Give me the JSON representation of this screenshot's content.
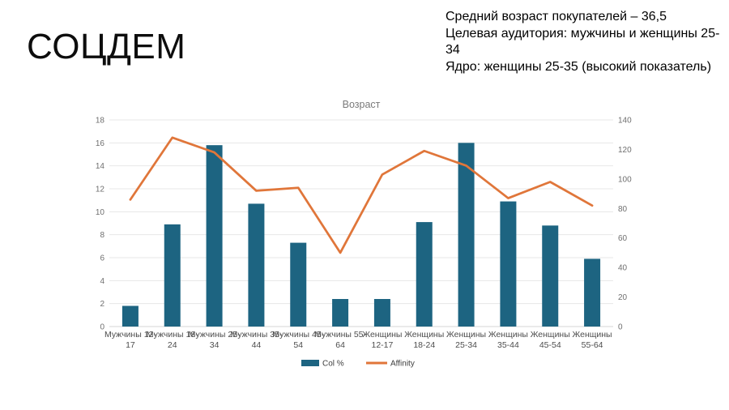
{
  "page": {
    "title": "СОЦДЕМ",
    "summary_lines": [
      "Средний возраст покупателей – 36,5",
      "Целевая аудитория: мужчины и женщины 25-34",
      "Ядро: женщины 25-35 (высокий показатель)"
    ]
  },
  "chart_data": {
    "type": "bar",
    "title": "Возраст",
    "categories": [
      "Мужчины 12-17",
      "Мужчины 18-24",
      "Мужчины 25-34",
      "Мужчины 35-44",
      "Мужчины 45-54",
      "Мужчины 55-64",
      "Женщины 12-17",
      "Женщины 18-24",
      "Женщины 25-34",
      "Женщины 35-44",
      "Женщины 45-54",
      "Женщины 55-64"
    ],
    "category_label_lines": [
      [
        "Мужчины 12-",
        "17"
      ],
      [
        "Мужчины 18-",
        "24"
      ],
      [
        "Мужчины 25-",
        "34"
      ],
      [
        "Мужчины 35-",
        "44"
      ],
      [
        "Мужчины 45-",
        "54"
      ],
      [
        "Мужчины 55-",
        "64"
      ],
      [
        "Женщины",
        "12-17"
      ],
      [
        "Женщины",
        "18-24"
      ],
      [
        "Женщины",
        "25-34"
      ],
      [
        "Женщины",
        "35-44"
      ],
      [
        "Женщины",
        "45-54"
      ],
      [
        "Женщины",
        "55-64"
      ]
    ],
    "series": [
      {
        "name": "Col %",
        "type": "bar",
        "axis": "left",
        "color": "#1d6481",
        "values": [
          1.8,
          8.9,
          15.8,
          10.7,
          7.3,
          2.4,
          2.4,
          9.1,
          16.0,
          10.9,
          8.8,
          5.9
        ]
      },
      {
        "name": "Affinity",
        "type": "line",
        "axis": "right",
        "color": "#e0763a",
        "values": [
          86,
          128,
          118,
          92,
          94,
          50,
          103,
          119,
          109,
          87,
          98,
          82
        ]
      }
    ],
    "left_axis": {
      "min": 0,
      "max": 18,
      "step": 2,
      "ticks": [
        "0",
        "2",
        "4",
        "6",
        "8",
        "10",
        "12",
        "14",
        "16",
        "18"
      ]
    },
    "right_axis": {
      "min": 0,
      "max": 140,
      "step": 20,
      "ticks": [
        "0",
        "20",
        "40",
        "60",
        "80",
        "100",
        "120",
        "140"
      ]
    },
    "grid": true,
    "legend_position": "bottom",
    "colors": {
      "grid_line": "#e7e7e7",
      "axis_line": "#d6d6d6",
      "tick_text": "#6f6f6f",
      "category_text": "#4d4d4d",
      "title_text": "#7a7a7a",
      "legend_text": "#3d3d3d"
    }
  }
}
